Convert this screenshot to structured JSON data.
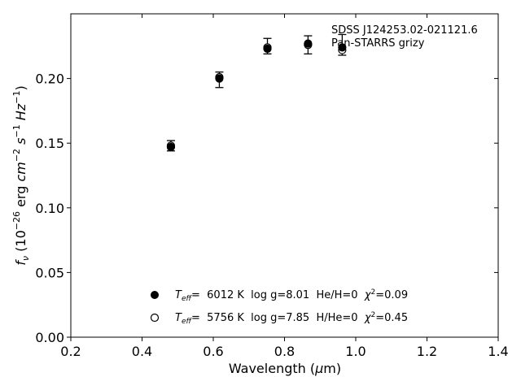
{
  "chart_data": {
    "type": "scatter",
    "title": "",
    "xlabel_main": "Wavelength (",
    "xlabel_unit_symbol": "μ",
    "xlabel_unit": "m)",
    "ylabel": {
      "symbol": "f",
      "sub": "ν",
      "prefix": " (10",
      "exp1": "−26",
      "mid1": " erg ",
      "cm": "cm",
      "exp2": "−2",
      "s": "s",
      "exp3": "−1",
      "hz": "Hz",
      "exp4": "−1",
      "suffix": ")"
    },
    "xlim": [
      0.2,
      1.4
    ],
    "ylim": [
      0.0,
      0.25
    ],
    "xticks": [
      "0.2",
      "0.4",
      "0.6",
      "0.8",
      "1.0",
      "1.2",
      "1.4"
    ],
    "yticks": [
      "0.00",
      "0.05",
      "0.10",
      "0.15",
      "0.20"
    ],
    "annotation": [
      "SDSS J124253.02-021121.6",
      "Pan-STARRS grizy"
    ],
    "observed": {
      "x": [
        0.481,
        0.617,
        0.752,
        0.866,
        0.962
      ],
      "y": [
        0.148,
        0.199,
        0.225,
        0.226,
        0.226
      ],
      "err": [
        0.004,
        0.006,
        0.006,
        0.007,
        0.008
      ]
    },
    "series": [
      {
        "name": "Teff= 6012 K log g=8.01 He/H=0 χ2=0.09",
        "marker": "filled",
        "x": [
          0.481,
          0.617,
          0.752,
          0.866,
          0.962
        ],
        "y": [
          0.147,
          0.2,
          0.223,
          0.227,
          0.224
        ]
      },
      {
        "name": "Teff= 5756 K log g=7.85 H/He=0 χ2=0.45",
        "marker": "open",
        "x": [
          0.481,
          0.617,
          0.752,
          0.866,
          0.962
        ],
        "y": [
          0.148,
          0.201,
          0.224,
          0.226,
          0.222
        ]
      }
    ],
    "legend": [
      {
        "T": "T",
        "Tsub": "eff",
        "rest": "=  6012 K  log g=8.01  He/H=0  ",
        "chi": "χ",
        "chi_exp": "2",
        "chi_val": "=0.09"
      },
      {
        "T": "T",
        "Tsub": "eff",
        "rest": "=  5756 K  log g=7.85  H/He=0  ",
        "chi": "χ",
        "chi_exp": "2",
        "chi_val": "=0.45"
      }
    ],
    "legend_position": "lower-center",
    "grid": false
  }
}
